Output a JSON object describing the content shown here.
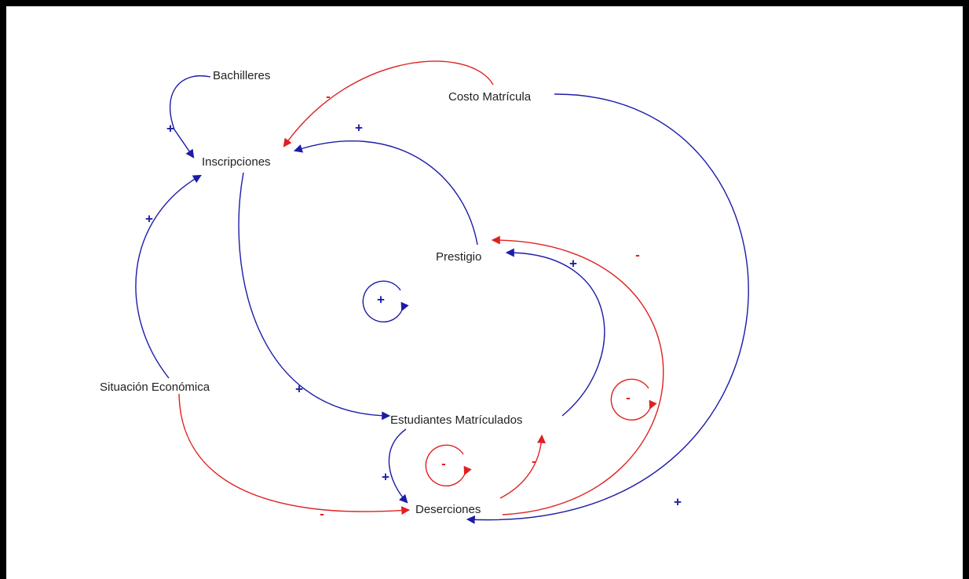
{
  "nodes": [
    {
      "label": "Bachilleres"
    },
    {
      "label": "Costo Matrícula"
    },
    {
      "label": "Inscripciones"
    },
    {
      "label": "Prestigio"
    },
    {
      "label": "Situación Económica"
    },
    {
      "label": "Estudiantes Matrículados"
    },
    {
      "label": "Deserciones"
    }
  ],
  "links": [
    {
      "polarity": "+",
      "color": "#1c1ca8"
    },
    {
      "polarity": "-",
      "color": "#e02020"
    },
    {
      "polarity": "+",
      "color": "#1c1ca8"
    },
    {
      "polarity": "+",
      "color": "#1c1ca8"
    },
    {
      "polarity": "+",
      "color": "#1c1ca8"
    },
    {
      "polarity": "+",
      "color": "#1c1ca8"
    },
    {
      "polarity": "-",
      "color": "#e02020"
    },
    {
      "polarity": "+",
      "color": "#1c1ca8"
    },
    {
      "polarity": "-",
      "color": "#e02020"
    },
    {
      "polarity": "-",
      "color": "#e02020"
    },
    {
      "polarity": "+",
      "color": "#1c1ca8"
    }
  ],
  "loops": [
    {
      "sign": "+",
      "color": "#1c1ca8"
    },
    {
      "sign": "-",
      "color": "#e02020"
    },
    {
      "sign": "-",
      "color": "#e02020"
    }
  ]
}
